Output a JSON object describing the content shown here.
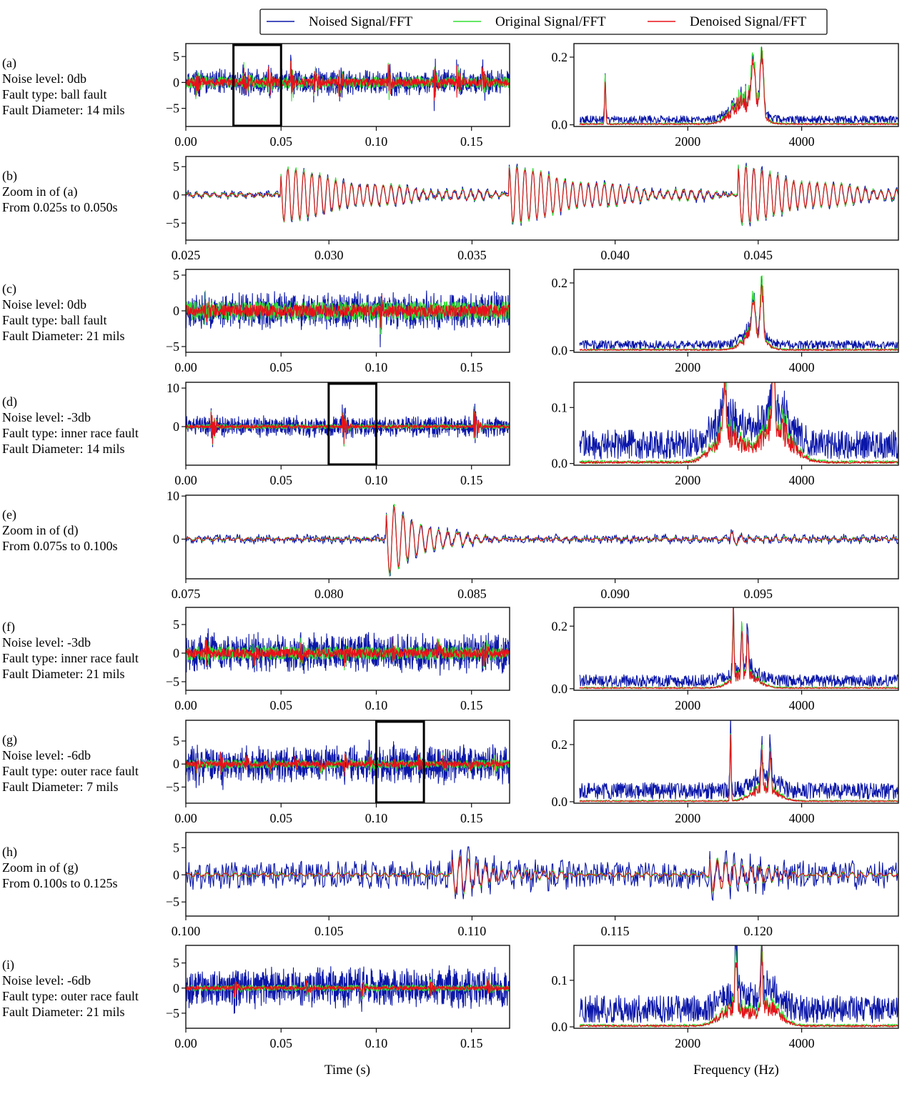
{
  "legend": {
    "position": "top-center",
    "entries": [
      {
        "label": "Noised Signal/FFT",
        "color": "#0a16a8"
      },
      {
        "label": "Original Signal/FFT",
        "color": "#33e033"
      },
      {
        "label": "Denoised Signal/FFT",
        "color": "#e8101a"
      }
    ]
  },
  "axis_titles": {
    "time": "Time (s)",
    "frequency": "Frequency (Hz)"
  },
  "chart_data": [
    {
      "id": "a",
      "type": "line",
      "kind": "time",
      "label": [
        "(a)",
        "Noise level: 0db",
        "Fault type: ball fault",
        "Fault Diameter: 14 mils"
      ],
      "xlim": [
        0,
        0.17
      ],
      "ylim": [
        -8.5,
        7.5
      ],
      "xticks": [
        0.0,
        0.05,
        0.1,
        0.15
      ],
      "xtick_labels": [
        "0.00",
        "0.05",
        "0.10",
        "0.15"
      ],
      "yticks": [
        -5,
        0,
        5
      ],
      "ytick_labels": [
        "−5",
        "0",
        "5"
      ],
      "highlight": [
        0.025,
        0.05
      ],
      "signal": {
        "seed": 11,
        "noise_amp": 1.8,
        "orig_amp": 1.1,
        "bursts": [
          0.005,
          0.03,
          0.043,
          0.055,
          0.067,
          0.08,
          0.106,
          0.13,
          0.142,
          0.155
        ],
        "burst_amp": 4.5
      }
    },
    {
      "id": "a-fft",
      "type": "line",
      "kind": "fft",
      "xlim": [
        0,
        5700
      ],
      "ylim": [
        -0.005,
        0.24
      ],
      "xticks": [
        2000,
        4000
      ],
      "xtick_labels": [
        "2000",
        "4000"
      ],
      "yticks": [
        0.0,
        0.2
      ],
      "ytick_labels": [
        "0.0",
        "0.2"
      ],
      "spectrum": {
        "seed": 21,
        "noise_floor": 0.018,
        "peaks": [
          [
            550,
            0.16,
            15
          ],
          [
            3150,
            0.17,
            50
          ],
          [
            3300,
            0.24,
            40
          ]
        ],
        "bands": [
          [
            3000,
            0.09,
            300
          ]
        ]
      }
    },
    {
      "id": "b",
      "type": "line",
      "kind": "zoom",
      "label": [
        "(b)",
        "Zoom in of (a)",
        "From 0.025s to 0.050s"
      ],
      "xlim": [
        0.025,
        0.0499
      ],
      "ylim": [
        -8.0,
        6.8
      ],
      "xticks": [
        0.025,
        0.03,
        0.035,
        0.04,
        0.045
      ],
      "xtick_labels": [
        "0.025",
        "0.030",
        "0.035",
        "0.040",
        "0.045"
      ],
      "yticks": [
        -5,
        0,
        5
      ],
      "ytick_labels": [
        "−5",
        "0",
        "5"
      ],
      "signal": {
        "seed": 31,
        "noise_amp": 0.55,
        "bursts": [
          0.0285,
          0.0365,
          0.0445
        ],
        "burst_amp": 5.2,
        "burst_decay": 0.003,
        "cycles_per_s": 3600
      }
    },
    {
      "id": "c",
      "type": "line",
      "kind": "time",
      "label": [
        "(c)",
        "Noise level: 0db",
        "Fault type: ball fault",
        "Fault Diameter: 21 mils"
      ],
      "xlim": [
        0,
        0.17
      ],
      "ylim": [
        -5.8,
        5.8
      ],
      "xticks": [
        0.0,
        0.05,
        0.1,
        0.15
      ],
      "xtick_labels": [
        "0.00",
        "0.05",
        "0.10",
        "0.15"
      ],
      "yticks": [
        -5,
        0,
        5
      ],
      "ytick_labels": [
        "−5",
        "0",
        "5"
      ],
      "signal": {
        "seed": 41,
        "noise_amp": 1.9,
        "orig_amp": 1.3,
        "bursts": [
          0.01,
          0.102
        ],
        "burst_amp": 3.0
      }
    },
    {
      "id": "c-fft",
      "type": "line",
      "kind": "fft",
      "xlim": [
        0,
        5700
      ],
      "ylim": [
        -0.005,
        0.24
      ],
      "xticks": [
        2000,
        4000
      ],
      "xtick_labels": [
        "2000",
        "4000"
      ],
      "yticks": [
        0.0,
        0.2
      ],
      "ytick_labels": [
        "0.0",
        "0.2"
      ],
      "spectrum": {
        "seed": 51,
        "noise_floor": 0.02,
        "peaks": [
          [
            3150,
            0.13,
            40
          ],
          [
            3300,
            0.22,
            35
          ]
        ],
        "bands": [
          [
            3150,
            0.06,
            250
          ]
        ]
      }
    },
    {
      "id": "d",
      "type": "line",
      "kind": "time",
      "label": [
        "(d)",
        "Noise level: -3db",
        "Fault type: inner race fault",
        "Fault Diameter: 14 mils"
      ],
      "xlim": [
        0,
        0.17
      ],
      "ylim": [
        -10.0,
        11.5
      ],
      "xticks": [
        0.0,
        0.05,
        0.1,
        0.15
      ],
      "xtick_labels": [
        "0.00",
        "0.05",
        "0.10",
        "0.15"
      ],
      "yticks": [
        0,
        10
      ],
      "ytick_labels": [
        "0",
        "10"
      ],
      "highlight": [
        0.075,
        0.1
      ],
      "signal": {
        "seed": 61,
        "noise_amp": 2.0,
        "orig_amp": 0.6,
        "bursts": [
          0.013,
          0.082,
          0.151
        ],
        "burst_amp": 8.5
      }
    },
    {
      "id": "d-fft",
      "type": "line",
      "kind": "fft",
      "xlim": [
        0,
        5700
      ],
      "ylim": [
        -0.003,
        0.145
      ],
      "xticks": [
        2000,
        4000
      ],
      "xtick_labels": [
        "2000",
        "4000"
      ],
      "yticks": [
        0.0,
        0.1
      ],
      "ytick_labels": [
        "0.0",
        "0.1"
      ],
      "spectrum": {
        "seed": 71,
        "noise_floor": 0.04,
        "peaks": [
          [
            2650,
            0.11,
            40
          ],
          [
            3500,
            0.14,
            40
          ]
        ],
        "bands": [
          [
            2700,
            0.06,
            350
          ],
          [
            3550,
            0.08,
            380
          ]
        ]
      }
    },
    {
      "id": "e",
      "type": "line",
      "kind": "zoom",
      "label": [
        "(e)",
        "Zoom in of (d)",
        "From 0.075s to 0.100s"
      ],
      "xlim": [
        0.075,
        0.0999
      ],
      "ylim": [
        -9.2,
        10.2
      ],
      "xticks": [
        0.075,
        0.08,
        0.085,
        0.09,
        0.095
      ],
      "xtick_labels": [
        "0.075",
        "0.080",
        "0.085",
        "0.090",
        "0.095"
      ],
      "yticks": [
        0,
        10
      ],
      "ytick_labels": [
        "0",
        "10"
      ],
      "signal": {
        "seed": 81,
        "noise_amp": 0.9,
        "bursts": [
          0.0822
        ],
        "burst_amp": 8.6,
        "burst_decay": 0.0012,
        "cycles_per_s": 3200,
        "small_bursts": [
          0.0845,
          0.094
        ]
      }
    },
    {
      "id": "f",
      "type": "line",
      "kind": "time",
      "label": [
        "(f)",
        "Noise level: -3db",
        "Fault type: inner race fault",
        "Fault Diameter: 21 mils"
      ],
      "xlim": [
        0,
        0.17
      ],
      "ylim": [
        -6.5,
        8.0
      ],
      "xticks": [
        0.0,
        0.05,
        0.1,
        0.15
      ],
      "xtick_labels": [
        "0.00",
        "0.05",
        "0.10",
        "0.15"
      ],
      "yticks": [
        -5,
        0,
        5
      ],
      "ytick_labels": [
        "−5",
        "0",
        "5"
      ],
      "signal": {
        "seed": 91,
        "noise_amp": 2.6,
        "orig_amp": 1.2,
        "bursts": [
          0.01,
          0.035,
          0.06,
          0.083,
          0.108,
          0.132,
          0.156
        ],
        "burst_amp": 3.2
      }
    },
    {
      "id": "f-fft",
      "type": "line",
      "kind": "fft",
      "xlim": [
        0,
        5700
      ],
      "ylim": [
        -0.005,
        0.26
      ],
      "xticks": [
        2000,
        4000
      ],
      "xtick_labels": [
        "2000",
        "4000"
      ],
      "yticks": [
        0.0,
        0.2
      ],
      "ytick_labels": [
        "0.0",
        "0.2"
      ],
      "spectrum": {
        "seed": 101,
        "noise_floor": 0.03,
        "peaks": [
          [
            2800,
            0.25,
            18
          ],
          [
            2950,
            0.22,
            18
          ],
          [
            3050,
            0.2,
            18
          ]
        ],
        "bands": [
          [
            3000,
            0.06,
            300
          ]
        ]
      }
    },
    {
      "id": "g",
      "type": "line",
      "kind": "time",
      "label": [
        "(g)",
        "Noise level: -6db",
        "Fault type: outer race fault",
        "Fault Diameter: 7 mils"
      ],
      "xlim": [
        0,
        0.17
      ],
      "ylim": [
        -8.5,
        9.5
      ],
      "xticks": [
        0.0,
        0.05,
        0.1,
        0.15
      ],
      "xtick_labels": [
        "0.00",
        "0.05",
        "0.10",
        "0.15"
      ],
      "yticks": [
        -5,
        0,
        5
      ],
      "ytick_labels": [
        "−5",
        "0",
        "5"
      ],
      "highlight": [
        0.1,
        0.125
      ],
      "signal": {
        "seed": 111,
        "noise_amp": 3.0,
        "orig_amp": 0.9,
        "bursts": [
          0.005,
          0.018,
          0.031,
          0.044,
          0.057,
          0.07,
          0.083,
          0.096,
          0.109,
          0.122,
          0.135,
          0.148,
          0.161
        ],
        "burst_amp": 2.8
      }
    },
    {
      "id": "g-fft",
      "type": "line",
      "kind": "fft",
      "xlim": [
        0,
        5700
      ],
      "ylim": [
        -0.005,
        0.285
      ],
      "xticks": [
        2000,
        4000
      ],
      "xtick_labels": [
        "2000",
        "4000"
      ],
      "yticks": [
        0.0,
        0.2
      ],
      "ytick_labels": [
        "0.0",
        "0.2"
      ],
      "spectrum": {
        "seed": 121,
        "noise_floor": 0.045,
        "peaks": [
          [
            2750,
            0.27,
            15
          ],
          [
            3300,
            0.18,
            20
          ],
          [
            3450,
            0.17,
            20
          ]
        ],
        "bands": [
          [
            3350,
            0.06,
            300
          ]
        ]
      }
    },
    {
      "id": "h",
      "type": "line",
      "kind": "zoom",
      "label": [
        "(h)",
        "Zoom in of (g)",
        "From 0.100s to 0.125s"
      ],
      "xlim": [
        0.1,
        0.1249
      ],
      "ylim": [
        -7.6,
        7.8
      ],
      "xticks": [
        0.1,
        0.105,
        0.11,
        0.115,
        0.12
      ],
      "xtick_labels": [
        "0.100",
        "0.105",
        "0.110",
        "0.115",
        "0.120"
      ],
      "yticks": [
        -5,
        0,
        5
      ],
      "ytick_labels": [
        "−5",
        "0",
        "5"
      ],
      "signal": {
        "seed": 131,
        "noise_amp": 2.4,
        "bursts": [
          0.1095,
          0.1185
        ],
        "burst_amp": 3.5,
        "burst_decay": 0.0016,
        "cycles_per_s": 3400
      }
    },
    {
      "id": "i",
      "type": "line",
      "kind": "time",
      "label": [
        "(i)",
        "Noise level: -6db",
        "Fault type: outer race fault",
        "Fault Diameter: 21 mils"
      ],
      "xlim": [
        0,
        0.17
      ],
      "ylim": [
        -8.0,
        8.5
      ],
      "xticks": [
        0.0,
        0.05,
        0.1,
        0.15
      ],
      "xtick_labels": [
        "0.00",
        "0.05",
        "0.10",
        "0.15"
      ],
      "yticks": [
        -5,
        0,
        5
      ],
      "ytick_labels": [
        "−5",
        "0",
        "5"
      ],
      "signal": {
        "seed": 141,
        "noise_amp": 3.0,
        "orig_amp": 0.6,
        "bursts": [
          0.025,
          0.063,
          0.092,
          0.128,
          0.158
        ],
        "burst_amp": 2.5
      }
    },
    {
      "id": "i-fft",
      "type": "line",
      "kind": "fft",
      "xlim": [
        0,
        5700
      ],
      "ylim": [
        -0.003,
        0.175
      ],
      "xticks": [
        2000,
        4000
      ],
      "xtick_labels": [
        "2000",
        "4000"
      ],
      "yticks": [
        0.0,
        0.1
      ],
      "ytick_labels": [
        "0.0",
        "0.1"
      ],
      "spectrum": {
        "seed": 151,
        "noise_floor": 0.045,
        "peaks": [
          [
            3300,
            0.17,
            20
          ],
          [
            2850,
            0.12,
            30
          ]
        ],
        "bands": [
          [
            2800,
            0.05,
            300
          ],
          [
            3400,
            0.05,
            300
          ]
        ]
      }
    }
  ]
}
